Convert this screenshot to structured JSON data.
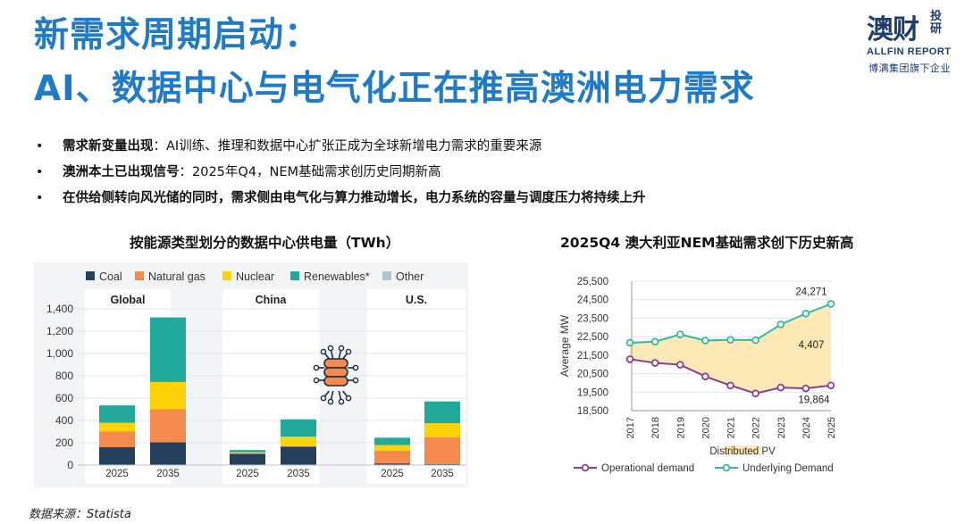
{
  "title": {
    "line1": "新需求周期启动：",
    "line2": "AI、数据中心与电气化正在推高澳洲电力需求"
  },
  "logo": {
    "main": "澳财",
    "side": "投研",
    "english": "ALLFIN REPORT",
    "tagline": "博满集团旗下企业"
  },
  "bullets": [
    {
      "marker": "•",
      "bold": "需求新变量出现",
      "text": "：AI训练、推理和数据中心扩张正成为全球新增电力需求的重要来源"
    },
    {
      "marker": "•",
      "bold": "澳洲本土已出现信号",
      "text": "：2025年Q4，NEM基础需求创历史同期新高"
    },
    {
      "marker": "•",
      "bold": "在供给侧转向风光储的同时，需求侧由电气化与算力推动增长，电力系统的容量与调度压力将持续上升",
      "text": ""
    }
  ],
  "source": "数据来源：Statista",
  "chart_data": [
    {
      "type": "bar",
      "stacked": true,
      "title": "按能源类型划分的数据中心供电量（TWh）",
      "ylim": [
        0,
        1400
      ],
      "yticks": [
        "0",
        "200",
        "400",
        "600",
        "800",
        "1,000",
        "1,200",
        "1,400"
      ],
      "ytick_values": [
        0,
        200,
        400,
        600,
        800,
        1000,
        1200,
        1400
      ],
      "grid": true,
      "legend_position": "top",
      "colors": {
        "Coal": "#243f5c",
        "Natural gas": "#f58a4e",
        "Nuclear": "#fcd308",
        "Renewables": "#21a99b",
        "Other": "#a9c6d6"
      },
      "legend": [
        "Coal",
        "Natural gas",
        "Nuclear",
        "Renewables*",
        "Other"
      ],
      "groups": [
        {
          "name": "Global",
          "categories": [
            "2025",
            "2035"
          ],
          "series": [
            {
              "name": "Coal",
              "values": [
                160,
                205
              ]
            },
            {
              "name": "Natural gas",
              "values": [
                140,
                295
              ]
            },
            {
              "name": "Nuclear",
              "values": [
                80,
                245
              ]
            },
            {
              "name": "Renewables",
              "values": [
                155,
                578
              ]
            },
            {
              "name": "Other",
              "values": [
                0,
                0
              ]
            }
          ]
        },
        {
          "name": "China",
          "categories": [
            "2025",
            "2035"
          ],
          "series": [
            {
              "name": "Coal",
              "values": [
                100,
                165
              ]
            },
            {
              "name": "Natural gas",
              "values": [
                5,
                5
              ]
            },
            {
              "name": "Nuclear",
              "values": [
                10,
                85
              ]
            },
            {
              "name": "Renewables",
              "values": [
                20,
                155
              ]
            },
            {
              "name": "Other",
              "values": [
                0,
                0
              ]
            }
          ]
        },
        {
          "name": "U.S.",
          "categories": [
            "2025",
            "2035"
          ],
          "series": [
            {
              "name": "Coal",
              "values": [
                15,
                10
              ]
            },
            {
              "name": "Natural gas",
              "values": [
                115,
                240
              ]
            },
            {
              "name": "Nuclear",
              "values": [
                50,
                125
              ]
            },
            {
              "name": "Renewables",
              "values": [
                65,
                195
              ]
            },
            {
              "name": "Other",
              "values": [
                0,
                0
              ]
            }
          ]
        }
      ]
    },
    {
      "type": "line",
      "title": "2025Q4 澳大利亚NEM基础需求创下历史新高",
      "ylabel": "Average MW",
      "x": [
        "2017",
        "2018",
        "2019",
        "2020",
        "2021",
        "2022",
        "2023",
        "2024",
        "2025"
      ],
      "ylim": [
        18500,
        25500
      ],
      "yticks": [
        "18,500",
        "19,500",
        "20,500",
        "21,500",
        "22,500",
        "23,500",
        "24,500",
        "25,500"
      ],
      "ytick_values": [
        18500,
        19500,
        20500,
        21500,
        22500,
        23500,
        24500,
        25500
      ],
      "grid": true,
      "series": [
        {
          "name": "Operational demand",
          "color": "#8e3c8e",
          "values": [
            21280,
            21080,
            20980,
            20350,
            19860,
            19430,
            19750,
            19700,
            19864
          ]
        },
        {
          "name": "Underlying Demand",
          "color": "#33b9a3",
          "values": [
            22170,
            22230,
            22620,
            22290,
            22330,
            22310,
            23160,
            23750,
            24271
          ]
        }
      ],
      "area": {
        "name": "Distributed PV",
        "color": "#fde9b5"
      },
      "annotations": [
        "24,271",
        "4,407",
        "19,864"
      ],
      "legend": [
        "Distributed PV",
        "Operational demand",
        "Underlying Demand"
      ]
    }
  ]
}
